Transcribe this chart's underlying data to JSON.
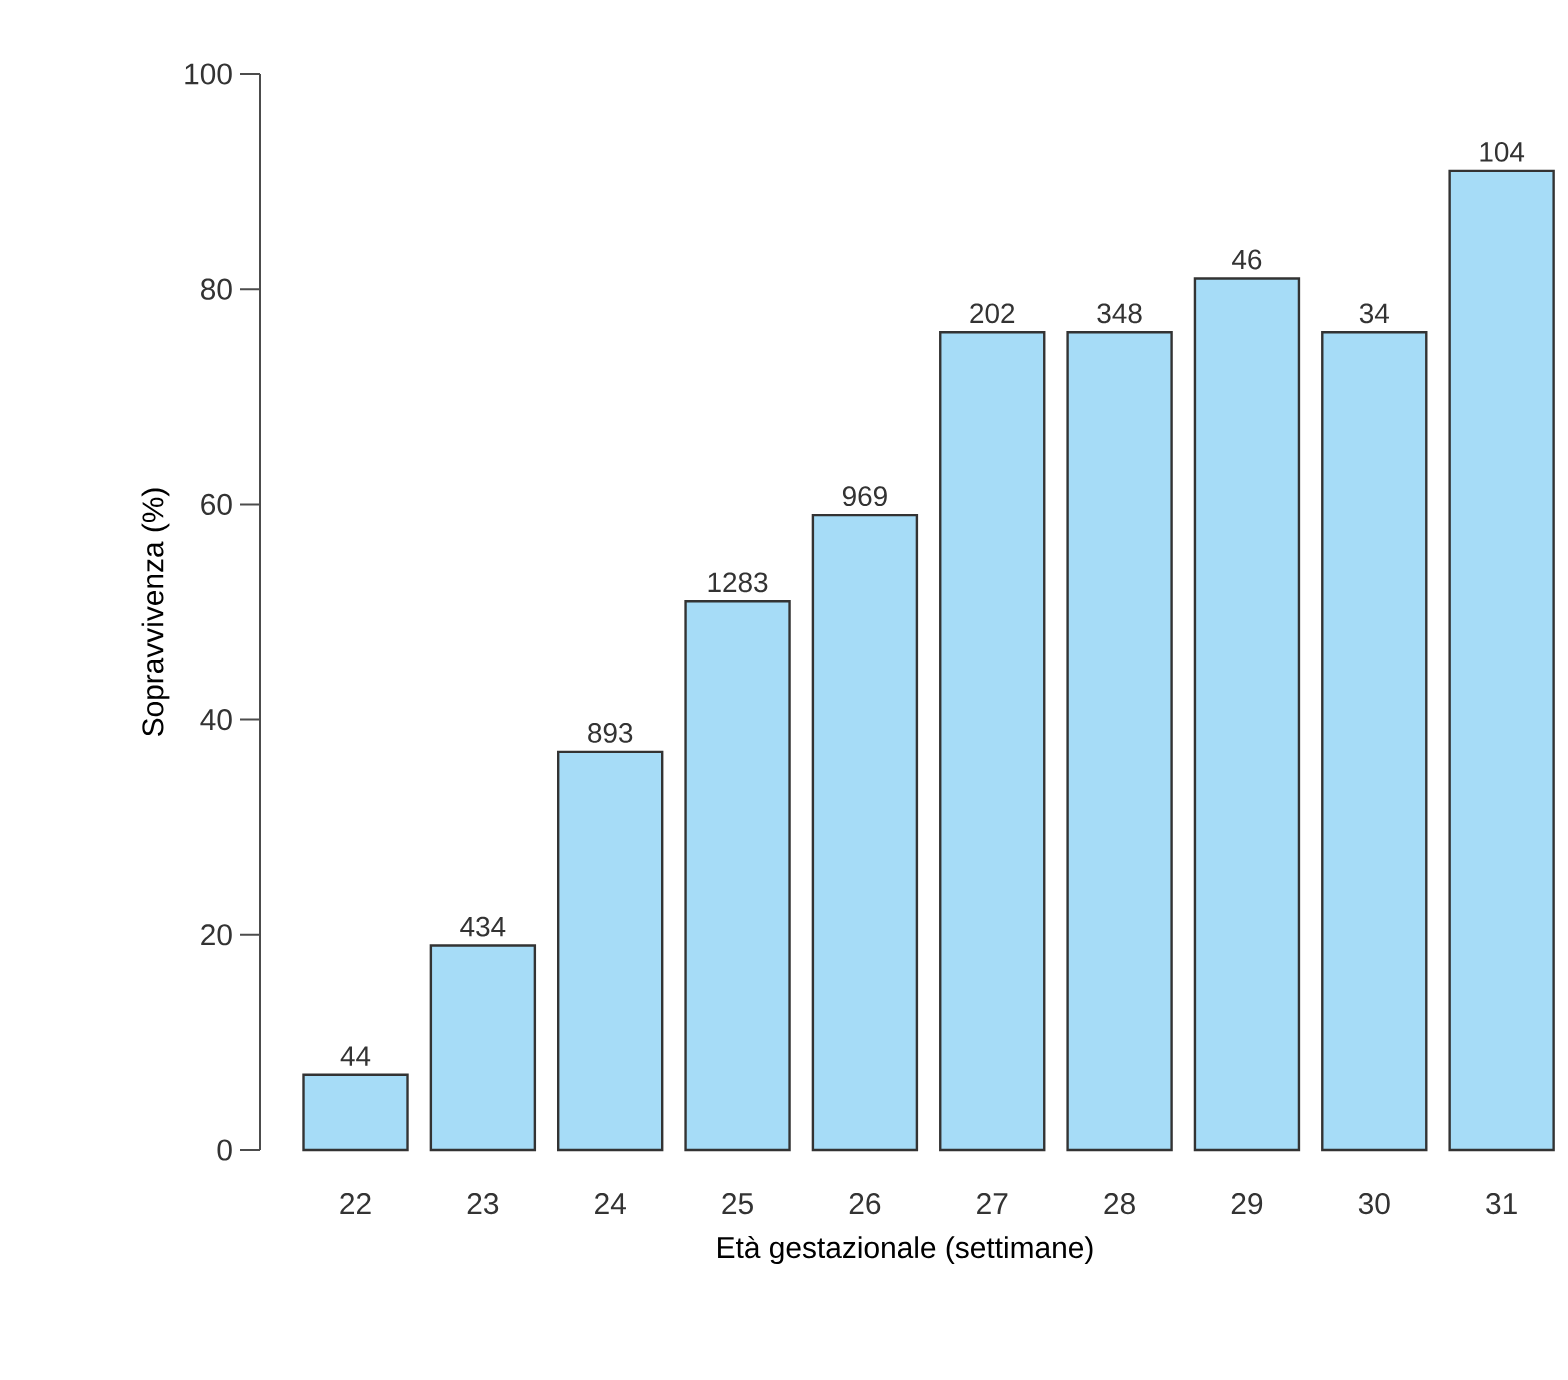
{
  "chart_data": {
    "type": "bar",
    "xlabel": "Età gestazionale (settimane)",
    "ylabel": "Sopravvivenza (%)",
    "categories": [
      "22",
      "23",
      "24",
      "25",
      "26",
      "27",
      "28",
      "29",
      "30",
      "31"
    ],
    "values": [
      7,
      19,
      37,
      51,
      59,
      76,
      76,
      81,
      76,
      91
    ],
    "annotations": [
      {
        "text": "44",
        "x": "22",
        "y": 7
      },
      {
        "text": "434",
        "x": "23",
        "y": 19
      },
      {
        "text": "893",
        "x": "24",
        "y": 37
      },
      {
        "text": "1283",
        "x": "25",
        "y": 51
      },
      {
        "text": "969",
        "x": "26",
        "y": 59
      },
      {
        "text": "202",
        "x": "27",
        "y": 76
      },
      {
        "text": "348",
        "x": "28",
        "y": 76
      },
      {
        "text": "46",
        "x": "29",
        "y": 81
      },
      {
        "text": "34",
        "x": "30",
        "y": 76
      },
      {
        "text": "104",
        "x": "31",
        "y": 91
      }
    ],
    "color": "#a6dcf7",
    "ylim": [
      0,
      100
    ],
    "yticks": [
      0,
      20,
      40,
      60,
      80,
      100
    ]
  }
}
